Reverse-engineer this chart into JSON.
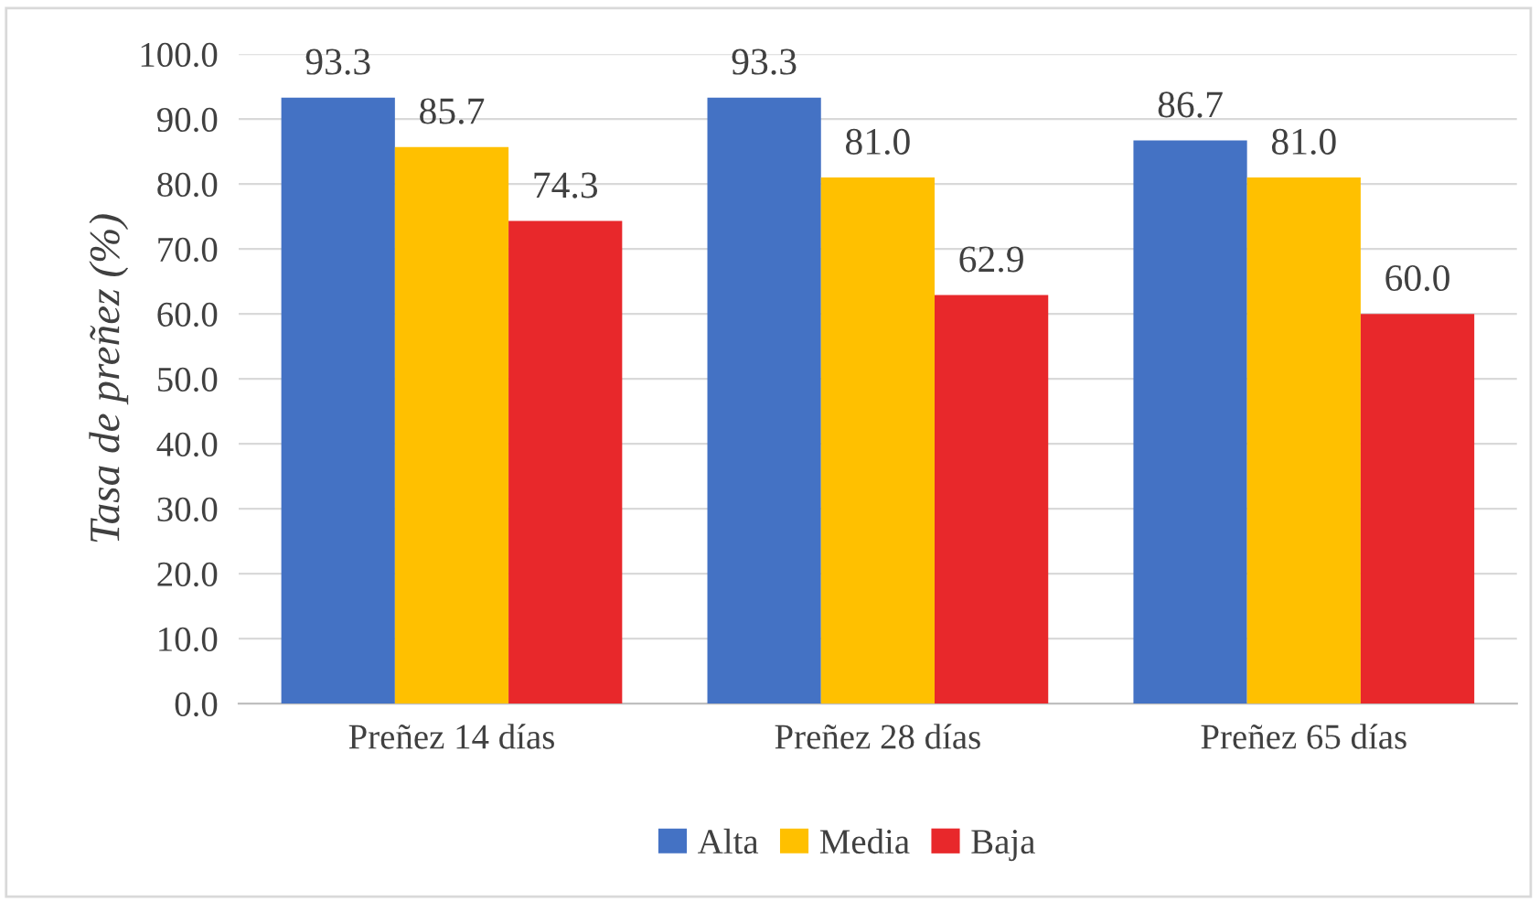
{
  "chart_data": {
    "type": "bar",
    "ylabel": "Tasa de preñez (%)",
    "categories": [
      "Preñez 14 días",
      "Preñez 28 días",
      "Preñez 65 días"
    ],
    "series": [
      {
        "name": "Alta",
        "color": "#4472c4",
        "values": [
          93.3,
          93.3,
          86.7
        ],
        "value_labels": [
          "93.3",
          "93.3",
          "86.7"
        ]
      },
      {
        "name": "Media",
        "color": "#ffc000",
        "values": [
          85.7,
          81.0,
          81.0
        ],
        "value_labels": [
          "85.7",
          "81.0",
          "81.0"
        ]
      },
      {
        "name": "Baja",
        "color": "#e8282b",
        "values": [
          74.3,
          62.9,
          60.0
        ],
        "value_labels": [
          "74.3",
          "62.9",
          "60.0"
        ]
      }
    ],
    "ylim": [
      0,
      100
    ],
    "yticks": [
      {
        "value": 0,
        "label": "0.0"
      },
      {
        "value": 10,
        "label": "10.0"
      },
      {
        "value": 20,
        "label": "20.0"
      },
      {
        "value": 30,
        "label": "30.0"
      },
      {
        "value": 40,
        "label": "40.0"
      },
      {
        "value": 50,
        "label": "50.0"
      },
      {
        "value": 60,
        "label": "60.0"
      },
      {
        "value": 70,
        "label": "70.0"
      },
      {
        "value": 80,
        "label": "80.0"
      },
      {
        "value": 90,
        "label": "90.0"
      },
      {
        "value": 100,
        "label": "100.0"
      }
    ],
    "grid": "y",
    "legend": "bottom"
  }
}
